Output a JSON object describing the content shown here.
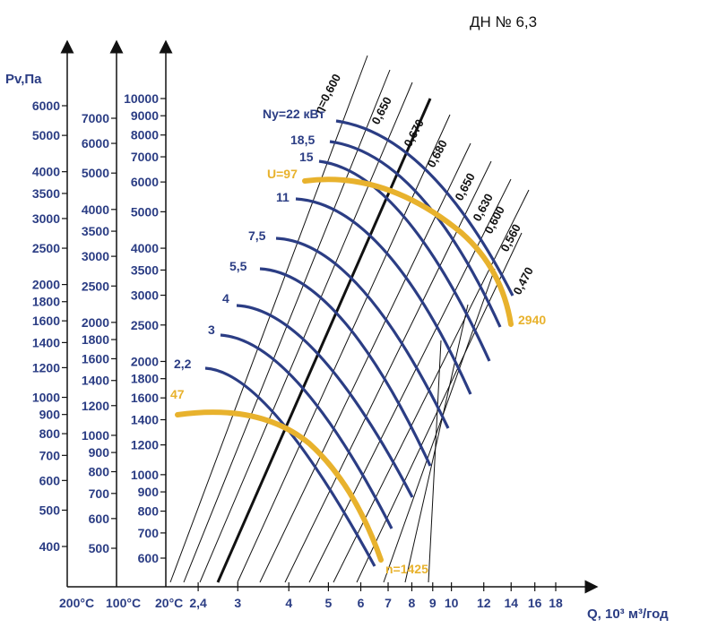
{
  "chart_data": {
    "type": "line",
    "title": "ДН № 6,3",
    "xlabel": "Q, 10³ м³/год",
    "ylabel": "Pv,Па",
    "x_ticks": [
      "2,4",
      "3",
      "4",
      "5",
      "6",
      "7",
      "8",
      "9",
      "10",
      "12",
      "14",
      "16",
      "18"
    ],
    "x_tick_values": [
      2.4,
      3,
      4,
      5,
      6,
      7,
      8,
      9,
      10,
      12,
      14,
      16,
      18
    ],
    "temperature_labels": [
      "200°C",
      "100°C",
      "20°C"
    ],
    "pressure_axes": [
      {
        "name": "200°C",
        "ticks": [
          "400",
          "500",
          "600",
          "700",
          "800",
          "900",
          "1000",
          "1200",
          "1400",
          "1600",
          "1800",
          "2000",
          "2500",
          "3000",
          "3500",
          "4000",
          "5000",
          "6000"
        ]
      },
      {
        "name": "100°C",
        "ticks": [
          "500",
          "600",
          "700",
          "800",
          "900",
          "1000",
          "1200",
          "1400",
          "1600",
          "1800",
          "2000",
          "2500",
          "3000",
          "3500",
          "4000",
          "5000",
          "6000",
          "7000"
        ]
      },
      {
        "name": "20°C",
        "ticks": [
          "600",
          "700",
          "800",
          "900",
          "1000",
          "1200",
          "1400",
          "1600",
          "1800",
          "2000",
          "2500",
          "3000",
          "3500",
          "4000",
          "5000",
          "6000",
          "7000",
          "8000",
          "9000",
          "10000"
        ]
      }
    ],
    "efficiency_labels": [
      "η=0,600",
      "0,650",
      "0,670",
      "0,680",
      "0,650",
      "0,630",
      "0,600",
      "0,560",
      "0,470"
    ],
    "power_labels": [
      "Ny=22 кВт",
      "18,5",
      "15",
      "11",
      "7,5",
      "5,5",
      "4",
      "3",
      "2,2"
    ],
    "speed_labels": {
      "u": "U=97",
      "u_value": "47",
      "n": "n=1425",
      "n_value": "2940"
    },
    "series": [
      {
        "name": "2,2",
        "points": [
          [
            2.6,
            1480
          ],
          [
            4.0,
            1280
          ],
          [
            6.2,
            700
          ]
        ]
      },
      {
        "name": "3",
        "points": [
          [
            2.9,
            2200
          ],
          [
            4.5,
            1900
          ],
          [
            7.0,
            800
          ]
        ]
      },
      {
        "name": "4",
        "points": [
          [
            3.3,
            2700
          ],
          [
            5.0,
            2400
          ],
          [
            7.6,
            900
          ]
        ]
      },
      {
        "name": "5,5",
        "points": [
          [
            3.7,
            3300
          ],
          [
            5.5,
            3000
          ],
          [
            8.5,
            1000
          ]
        ]
      },
      {
        "name": "7,5",
        "points": [
          [
            4.0,
            4300
          ],
          [
            6.2,
            3700
          ],
          [
            9.6,
            1200
          ]
        ]
      },
      {
        "name": "11",
        "points": [
          [
            4.5,
            5700
          ],
          [
            7.0,
            5000
          ],
          [
            10.5,
            1400
          ]
        ]
      },
      {
        "name": "15",
        "points": [
          [
            4.7,
            7000
          ],
          [
            7.5,
            6200
          ],
          [
            11.5,
            1700
          ]
        ]
      },
      {
        "name": "18,5",
        "points": [
          [
            5.0,
            8000
          ],
          [
            8.0,
            7000
          ],
          [
            12.5,
            2200
          ]
        ]
      },
      {
        "name": "22",
        "points": [
          [
            5.5,
            9200
          ],
          [
            8.7,
            7800
          ],
          [
            13.2,
            2600
          ]
        ]
      }
    ]
  }
}
